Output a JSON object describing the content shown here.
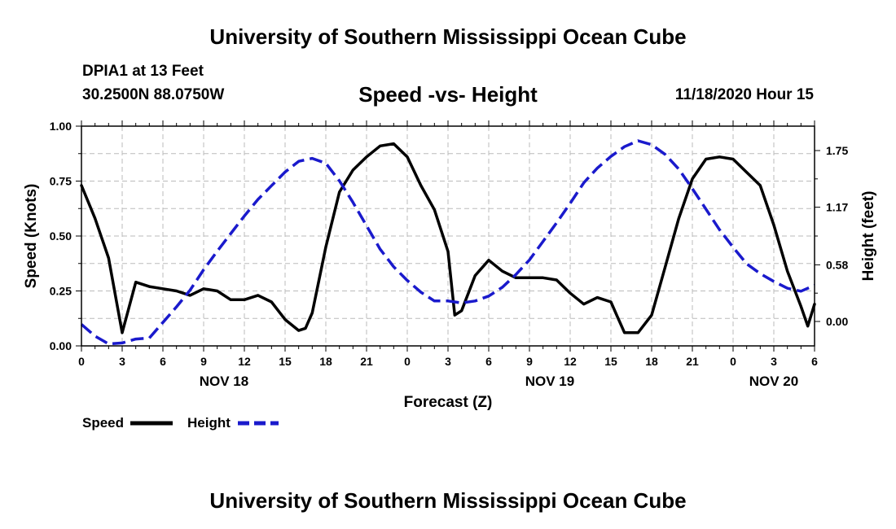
{
  "header": {
    "title": "University of Southern Mississippi Ocean Cube",
    "station": "DPIA1 at 13 Feet",
    "coordinates": "30.2500N 88.0750W",
    "subtitle": "Speed -vs- Height",
    "datetime": "11/18/2020 Hour 15"
  },
  "footer": {
    "title": "University of Southern Mississippi Ocean Cube"
  },
  "colors": {
    "speed": "#000000",
    "height": "#1a1acc",
    "grid": "#bbbbbb"
  },
  "chart_data": {
    "type": "line",
    "title": "Speed -vs- Height",
    "xlabel": "Forecast (Z)",
    "ylabel": "Speed (Knots)",
    "y2label": "Height (feet)",
    "x_range": [
      0,
      54
    ],
    "ylim": [
      0,
      1.0
    ],
    "y2lim": [
      -0.25,
      2.0
    ],
    "x_ticks": [
      {
        "x": 0,
        "label": "0"
      },
      {
        "x": 3,
        "label": "3"
      },
      {
        "x": 6,
        "label": "6"
      },
      {
        "x": 9,
        "label": "9"
      },
      {
        "x": 12,
        "label": "12"
      },
      {
        "x": 15,
        "label": "15"
      },
      {
        "x": 18,
        "label": "18"
      },
      {
        "x": 21,
        "label": "21"
      },
      {
        "x": 24,
        "label": "0"
      },
      {
        "x": 27,
        "label": "3"
      },
      {
        "x": 30,
        "label": "6"
      },
      {
        "x": 33,
        "label": "9"
      },
      {
        "x": 36,
        "label": "12"
      },
      {
        "x": 39,
        "label": "15"
      },
      {
        "x": 42,
        "label": "18"
      },
      {
        "x": 45,
        "label": "21"
      },
      {
        "x": 48,
        "label": "0"
      },
      {
        "x": 51,
        "label": "3"
      },
      {
        "x": 54,
        "label": "6"
      }
    ],
    "date_labels": [
      {
        "x": 10.5,
        "label": "NOV 18"
      },
      {
        "x": 34.5,
        "label": "NOV 19"
      },
      {
        "x": 51,
        "label": "NOV 20"
      }
    ],
    "y_ticks": [
      {
        "value": 0.0,
        "label": "0.00"
      },
      {
        "value": 0.25,
        "label": "0.25"
      },
      {
        "value": 0.5,
        "label": "0.50"
      },
      {
        "value": 0.75,
        "label": "0.75"
      },
      {
        "value": 1.0,
        "label": "1.00"
      }
    ],
    "y2_ticks": [
      {
        "value": 0.0,
        "label": "0.00"
      },
      {
        "value": 0.58,
        "label": "0.58"
      },
      {
        "value": 1.17,
        "label": "1.17"
      },
      {
        "value": 1.75,
        "label": "1.75"
      }
    ],
    "legend": {
      "position": "bottom-left"
    },
    "series": [
      {
        "name": "Speed",
        "axis": "left",
        "style": "solid",
        "x": [
          0,
          1,
          2,
          3,
          4,
          5,
          6,
          7,
          8,
          9,
          10,
          11,
          12,
          13,
          14,
          15,
          16,
          16.5,
          17,
          18,
          19,
          20,
          21,
          22,
          23,
          24,
          25,
          26,
          27,
          27.5,
          28,
          29,
          30,
          31,
          32,
          33,
          34,
          35,
          36,
          37,
          38,
          39,
          39.5,
          40,
          41,
          42,
          43,
          44,
          45,
          46,
          47,
          48,
          49,
          50,
          51,
          52,
          53,
          53.5,
          54
        ],
        "values": [
          0.73,
          0.58,
          0.4,
          0.06,
          0.29,
          0.27,
          0.26,
          0.25,
          0.23,
          0.26,
          0.25,
          0.21,
          0.21,
          0.23,
          0.2,
          0.12,
          0.07,
          0.08,
          0.15,
          0.45,
          0.7,
          0.8,
          0.86,
          0.91,
          0.92,
          0.86,
          0.73,
          0.62,
          0.43,
          0.14,
          0.16,
          0.32,
          0.39,
          0.34,
          0.31,
          0.31,
          0.31,
          0.3,
          0.24,
          0.19,
          0.22,
          0.2,
          0.13,
          0.06,
          0.06,
          0.14,
          0.36,
          0.58,
          0.76,
          0.85,
          0.86,
          0.85,
          0.79,
          0.73,
          0.55,
          0.34,
          0.18,
          0.09,
          0.19
        ]
      },
      {
        "name": "Height",
        "axis": "right",
        "style": "dashed",
        "x": [
          0,
          1,
          2,
          3,
          4,
          5,
          6,
          7,
          8,
          9,
          10,
          11,
          12,
          13,
          14,
          15,
          16,
          17,
          18,
          19,
          20,
          21,
          22,
          23,
          24,
          25,
          26,
          27,
          28,
          29,
          30,
          31,
          32,
          33,
          34,
          35,
          36,
          37,
          38,
          39,
          40,
          41,
          42,
          43,
          44,
          45,
          46,
          47,
          48,
          49,
          50,
          51,
          52,
          53,
          54
        ],
        "values": [
          -0.03,
          -0.15,
          -0.23,
          -0.22,
          -0.18,
          -0.17,
          -0.01,
          0.15,
          0.32,
          0.53,
          0.72,
          0.9,
          1.08,
          1.25,
          1.39,
          1.53,
          1.64,
          1.67,
          1.62,
          1.44,
          1.22,
          0.98,
          0.74,
          0.56,
          0.42,
          0.3,
          0.21,
          0.21,
          0.19,
          0.21,
          0.26,
          0.35,
          0.48,
          0.63,
          0.82,
          1.01,
          1.21,
          1.42,
          1.57,
          1.69,
          1.79,
          1.85,
          1.81,
          1.71,
          1.56,
          1.36,
          1.15,
          0.94,
          0.76,
          0.59,
          0.49,
          0.41,
          0.34,
          0.31,
          0.37
        ]
      }
    ]
  }
}
